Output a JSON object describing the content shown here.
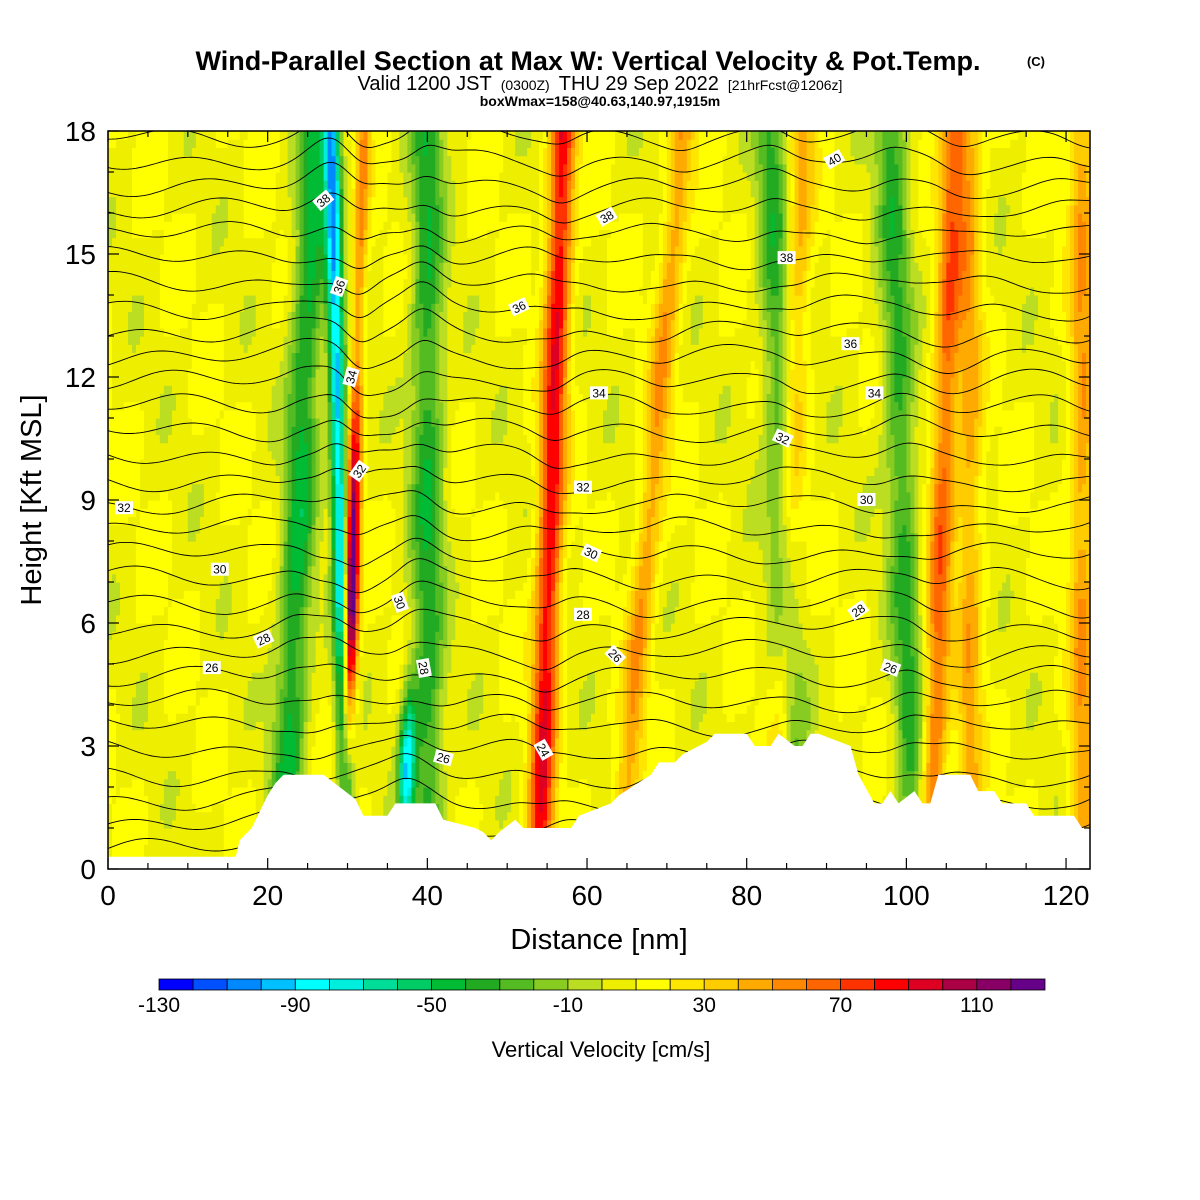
{
  "title": {
    "main": "Wind-Parallel Section at Max W: Vertical Velocity & Pot.Temp.",
    "copyright": "(C)",
    "valid_prefix": "Valid 1200 JST",
    "valid_utc": "(0300Z)",
    "valid_date": "THU 29 Sep 2022",
    "forecast": "[21hrFcst@1206z]",
    "boxwmax": "boxWmax=158@40.63,140.97,1915m"
  },
  "colors": {
    "terrain": "#ffffff",
    "contour": "#000000",
    "frame": "#000000"
  },
  "chart_data": {
    "type": "heatmap",
    "xlabel": "Distance [nm]",
    "ylabel": "Height [Kft MSL]",
    "xlim": [
      0,
      123
    ],
    "ylim": [
      0,
      18
    ],
    "x_ticks": [
      0,
      20,
      40,
      60,
      80,
      100,
      120
    ],
    "y_ticks": [
      0,
      3,
      6,
      9,
      12,
      15,
      18
    ],
    "colorbar": {
      "title": "Vertical Velocity [cm/s]",
      "min": -130,
      "max": 130,
      "step": 10,
      "tick_labels": [
        "-130",
        "-90",
        "-50",
        "-10",
        "30",
        "70",
        "110"
      ],
      "colors": [
        "#0000ff",
        "#0050ff",
        "#0088ff",
        "#00c0ff",
        "#00ffff",
        "#00eedd",
        "#00dd99",
        "#00cc66",
        "#00bb33",
        "#22aa22",
        "#55bb22",
        "#88cc22",
        "#bbdd22",
        "#eeee00",
        "#ffff00",
        "#ffe600",
        "#ffcc00",
        "#ffaa00",
        "#ff8800",
        "#ff6600",
        "#ff3300",
        "#ff0000",
        "#dd0022",
        "#aa0044",
        "#880066",
        "#660088"
      ]
    },
    "terrain_profile": {
      "x": [
        0,
        16,
        16.5,
        18,
        19,
        20,
        21,
        22,
        27,
        31,
        32,
        35,
        36,
        41,
        42,
        46,
        47,
        48,
        49,
        51,
        52,
        58,
        59,
        63,
        64,
        68,
        69,
        71,
        72,
        75,
        76,
        80,
        81,
        83,
        84,
        86,
        87,
        88,
        89,
        93,
        94,
        96,
        97,
        98,
        99,
        101,
        102,
        103,
        104,
        108,
        109,
        111,
        112,
        115,
        116,
        121,
        122,
        123
      ],
      "height_kft": [
        0.3,
        0.3,
        0.7,
        1.0,
        1.4,
        1.8,
        2.1,
        2.3,
        2.3,
        1.7,
        1.3,
        1.3,
        1.6,
        1.6,
        1.2,
        1.0,
        0.9,
        0.7,
        0.9,
        1.2,
        1.0,
        1.0,
        1.3,
        1.6,
        1.8,
        2.3,
        2.6,
        2.6,
        2.8,
        3.1,
        3.3,
        3.3,
        3.0,
        3.0,
        3.3,
        3.0,
        3.0,
        3.3,
        3.3,
        3.0,
        2.3,
        1.6,
        1.6,
        1.9,
        1.6,
        1.9,
        1.6,
        1.6,
        2.3,
        2.3,
        1.9,
        1.9,
        1.6,
        1.6,
        1.3,
        1.3,
        1.0,
        1.0
      ]
    },
    "updraft_axes": [
      {
        "x_bottom": 29.5,
        "x_top": 32,
        "peak_cm_s": 120
      },
      {
        "x_bottom": 54,
        "x_top": 57,
        "peak_cm_s": 80
      },
      {
        "x_bottom": 64,
        "x_top": 72,
        "peak_cm_s": 40
      },
      {
        "x_bottom": 103,
        "x_top": 106,
        "peak_cm_s": 55
      },
      {
        "x_bottom": 108,
        "x_top": 108,
        "peak_cm_s": 35
      },
      {
        "x_bottom": 84,
        "x_top": 87,
        "peak_cm_s": 35
      },
      {
        "x_bottom": 122,
        "x_top": 122,
        "peak_cm_s": 40
      }
    ],
    "downdraft_axes": [
      {
        "x_bottom": 30,
        "x_top": 28,
        "peak_cm_s": -100
      },
      {
        "x_bottom": 37,
        "x_top": 40,
        "peak_cm_s": -90
      },
      {
        "x_bottom": 22,
        "x_top": 26,
        "peak_cm_s": -50
      },
      {
        "x_bottom": 40,
        "x_top": 40,
        "peak_cm_s": -45
      },
      {
        "x_bottom": 86,
        "x_top": 83,
        "peak_cm_s": -40
      },
      {
        "x_bottom": 101,
        "x_top": 98,
        "peak_cm_s": -40
      }
    ],
    "contour_labels": [
      {
        "text": "40",
        "x": 91,
        "y": 17.3,
        "angle": 30
      },
      {
        "text": "38",
        "x": 27,
        "y": 16.3,
        "angle": 40
      },
      {
        "text": "38",
        "x": 62.5,
        "y": 15.9,
        "angle": 30
      },
      {
        "text": "38",
        "x": 85,
        "y": 14.9,
        "angle": 0
      },
      {
        "text": "36",
        "x": 29,
        "y": 14.2,
        "angle": 70
      },
      {
        "text": "36",
        "x": 51.5,
        "y": 13.7,
        "angle": 25
      },
      {
        "text": "36",
        "x": 93,
        "y": 12.8,
        "angle": 0
      },
      {
        "text": "34",
        "x": 30.5,
        "y": 12.0,
        "angle": 75
      },
      {
        "text": "34",
        "x": 61.5,
        "y": 11.6,
        "angle": 0
      },
      {
        "text": "34",
        "x": 96,
        "y": 11.6,
        "angle": 0
      },
      {
        "text": "32",
        "x": 84.5,
        "y": 10.5,
        "angle": -25
      },
      {
        "text": "32",
        "x": 31.5,
        "y": 9.7,
        "angle": 55
      },
      {
        "text": "32",
        "x": 59.5,
        "y": 9.3,
        "angle": 0
      },
      {
        "text": "32",
        "x": 2,
        "y": 8.8,
        "angle": 0
      },
      {
        "text": "30",
        "x": 95,
        "y": 9.0,
        "angle": 0
      },
      {
        "text": "30",
        "x": 60.5,
        "y": 7.7,
        "angle": -25
      },
      {
        "text": "30",
        "x": 14,
        "y": 7.3,
        "angle": 0
      },
      {
        "text": "30",
        "x": 36.5,
        "y": 6.5,
        "angle": -70
      },
      {
        "text": "28",
        "x": 59.5,
        "y": 6.2,
        "angle": 0
      },
      {
        "text": "28",
        "x": 94,
        "y": 6.3,
        "angle": 35
      },
      {
        "text": "28",
        "x": 19.5,
        "y": 5.6,
        "angle": 25
      },
      {
        "text": "26",
        "x": 63.5,
        "y": 5.2,
        "angle": -45
      },
      {
        "text": "26",
        "x": 13,
        "y": 4.9,
        "angle": 0
      },
      {
        "text": "26",
        "x": 98,
        "y": 4.9,
        "angle": -20
      },
      {
        "text": "28",
        "x": 39.5,
        "y": 4.9,
        "angle": -80
      },
      {
        "text": "26",
        "x": 42,
        "y": 2.7,
        "angle": -15
      },
      {
        "text": "24",
        "x": 54.5,
        "y": 2.9,
        "angle": -60
      }
    ]
  }
}
